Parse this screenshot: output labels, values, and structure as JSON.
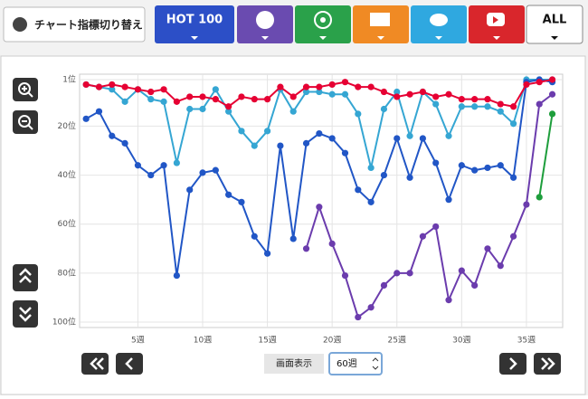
{
  "ui": {
    "switch_label": "チャート指標切り替え",
    "hot100": "HOT 100",
    "all": "ALL",
    "display_label": "画面表示",
    "period": "60週"
  },
  "chart_data": {
    "type": "line",
    "x": [
      1,
      2,
      3,
      4,
      5,
      6,
      7,
      8,
      9,
      10,
      11,
      12,
      13,
      14,
      15,
      16,
      17,
      18,
      19,
      20,
      21,
      22,
      23,
      24,
      25,
      26,
      27,
      28,
      29,
      30,
      31,
      32,
      33,
      34,
      35,
      36,
      37
    ],
    "xlim": [
      0.5,
      37.8
    ],
    "xticks": [
      {
        "value": 5,
        "label": "5週"
      },
      {
        "value": 10,
        "label": "10週"
      },
      {
        "value": 15,
        "label": "15週"
      },
      {
        "value": 20,
        "label": "20週"
      },
      {
        "value": 25,
        "label": "25週"
      },
      {
        "value": 30,
        "label": "30週"
      },
      {
        "value": 35,
        "label": "35週"
      }
    ],
    "ylim": [
      100,
      1
    ],
    "inverted": true,
    "yticks": [
      {
        "value": 1,
        "label": "1位"
      },
      {
        "value": 20,
        "label": "20位"
      },
      {
        "value": 40,
        "label": "40位"
      },
      {
        "value": 60,
        "label": "60位"
      },
      {
        "value": 80,
        "label": "80位"
      },
      {
        "value": 100,
        "label": "100位"
      }
    ],
    "grid": true,
    "series": [
      {
        "color": "#35a6d3",
        "values": [
          3,
          4,
          5,
          10,
          5,
          9,
          10,
          35,
          13,
          13,
          5,
          14,
          22,
          28,
          22,
          5,
          14,
          6,
          6,
          7,
          7,
          15,
          37,
          13,
          6,
          24,
          6,
          11,
          24,
          12,
          12,
          12,
          14,
          19,
          1,
          1,
          1
        ]
      },
      {
        "color": "#2156c6",
        "values": [
          17,
          14,
          24,
          27,
          36,
          40,
          36,
          81,
          46,
          39,
          38,
          48,
          51,
          65,
          72,
          28,
          66,
          27,
          23,
          25,
          31,
          46,
          51,
          40,
          25,
          41,
          25,
          35,
          50,
          36,
          38,
          37,
          36,
          41,
          2,
          1,
          2
        ]
      },
      {
        "color": "#6b3cad",
        "values": [
          null,
          null,
          null,
          null,
          null,
          null,
          null,
          null,
          null,
          null,
          null,
          null,
          null,
          null,
          null,
          null,
          null,
          70,
          53,
          68,
          81,
          98,
          94,
          85,
          80,
          80,
          65,
          61,
          91,
          79,
          85,
          70,
          77,
          65,
          52,
          11,
          7
        ]
      },
      {
        "color": "#1e9e3c",
        "values": [
          null,
          null,
          null,
          null,
          null,
          null,
          null,
          null,
          null,
          null,
          null,
          null,
          null,
          null,
          null,
          null,
          null,
          null,
          null,
          null,
          null,
          null,
          null,
          null,
          null,
          null,
          null,
          null,
          null,
          null,
          null,
          null,
          null,
          null,
          null,
          49,
          15
        ]
      },
      {
        "color": "#e60033",
        "values": [
          3,
          4,
          3,
          4,
          5,
          6,
          5,
          10,
          8,
          8,
          9,
          12,
          8,
          9,
          9,
          4,
          8,
          4,
          4,
          3,
          2,
          4,
          4,
          6,
          8,
          7,
          6,
          8,
          7,
          9,
          9,
          9,
          11,
          12,
          3,
          2,
          1
        ]
      }
    ]
  }
}
